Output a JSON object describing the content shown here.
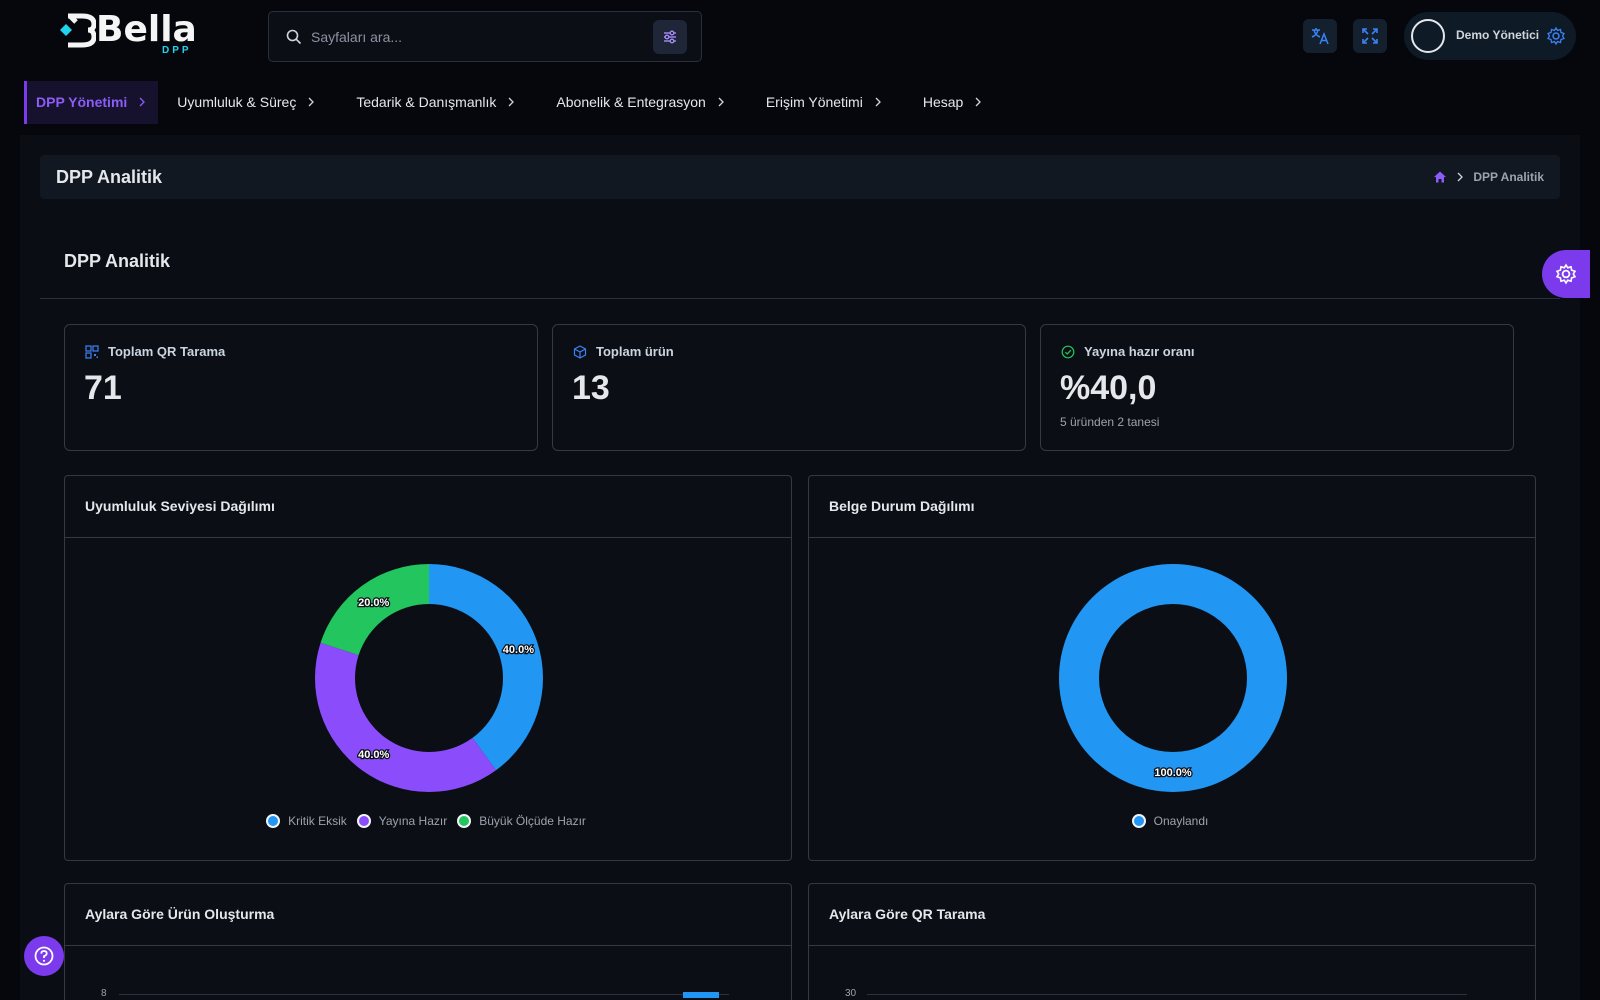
{
  "app": {
    "logo_text": "Bella",
    "logo_sub": "DPP"
  },
  "search": {
    "placeholder": "Sayfaları ara..."
  },
  "user": {
    "name": "Demo Yönetici"
  },
  "nav": {
    "items": [
      {
        "label": "DPP Yönetimi",
        "active": true
      },
      {
        "label": "Uyumluluk & Süreç"
      },
      {
        "label": "Tedarik & Danışmanlık"
      },
      {
        "label": "Abonelik & Entegrasyon"
      },
      {
        "label": "Erişim Yönetimi"
      },
      {
        "label": "Hesap"
      }
    ]
  },
  "page": {
    "title": "DPP Analitik",
    "breadcrumb_current": "DPP Analitik",
    "section_title": "DPP Analitik"
  },
  "stats": [
    {
      "label": "Toplam QR Tarama",
      "value": "71",
      "icon": "qr-icon",
      "sub": ""
    },
    {
      "label": "Toplam ürün",
      "value": "13",
      "icon": "cube-icon",
      "sub": ""
    },
    {
      "label": "Yayına hazır oranı",
      "value": "%40,0",
      "icon": "check-circle-icon",
      "sub": "5 üründen 2 tanesi"
    }
  ],
  "colors": {
    "accent": "#7c3aed",
    "blue": "#2196f3",
    "purple": "#8b4dfb",
    "green": "#22c55e"
  },
  "panels": {
    "compliance_title": "Uyumluluk Seviyesi Dağılımı",
    "documents_title": "Belge Durum Dağılımı",
    "monthly_products_title": "Aylara Göre Ürün Oluşturma",
    "monthly_qr_title": "Aylara Göre QR Tarama"
  },
  "chart_data": [
    {
      "type": "pie",
      "title": "Uyumluluk Seviyesi Dağılımı",
      "categories": [
        "Kritik Eksik",
        "Yayına Hazır",
        "Büyük Ölçüde Hazır"
      ],
      "values": [
        40.0,
        40.0,
        20.0
      ],
      "labels": [
        "40.0%",
        "40.0%",
        "20.0%"
      ],
      "colors": [
        "#2196f3",
        "#8b4dfb",
        "#22c55e"
      ],
      "legend": "bottom"
    },
    {
      "type": "pie",
      "title": "Belge Durum Dağılımı",
      "categories": [
        "Onaylandı"
      ],
      "values": [
        100.0
      ],
      "labels": [
        "100.0%"
      ],
      "colors": [
        "#2196f3"
      ],
      "legend": "bottom"
    },
    {
      "type": "bar",
      "title": "Aylara Göre Ürün Oluşturma",
      "y_ticks_visible": [
        "8"
      ]
    },
    {
      "type": "bar",
      "title": "Aylara Göre QR Tarama",
      "y_ticks_visible": [
        "30"
      ]
    }
  ]
}
